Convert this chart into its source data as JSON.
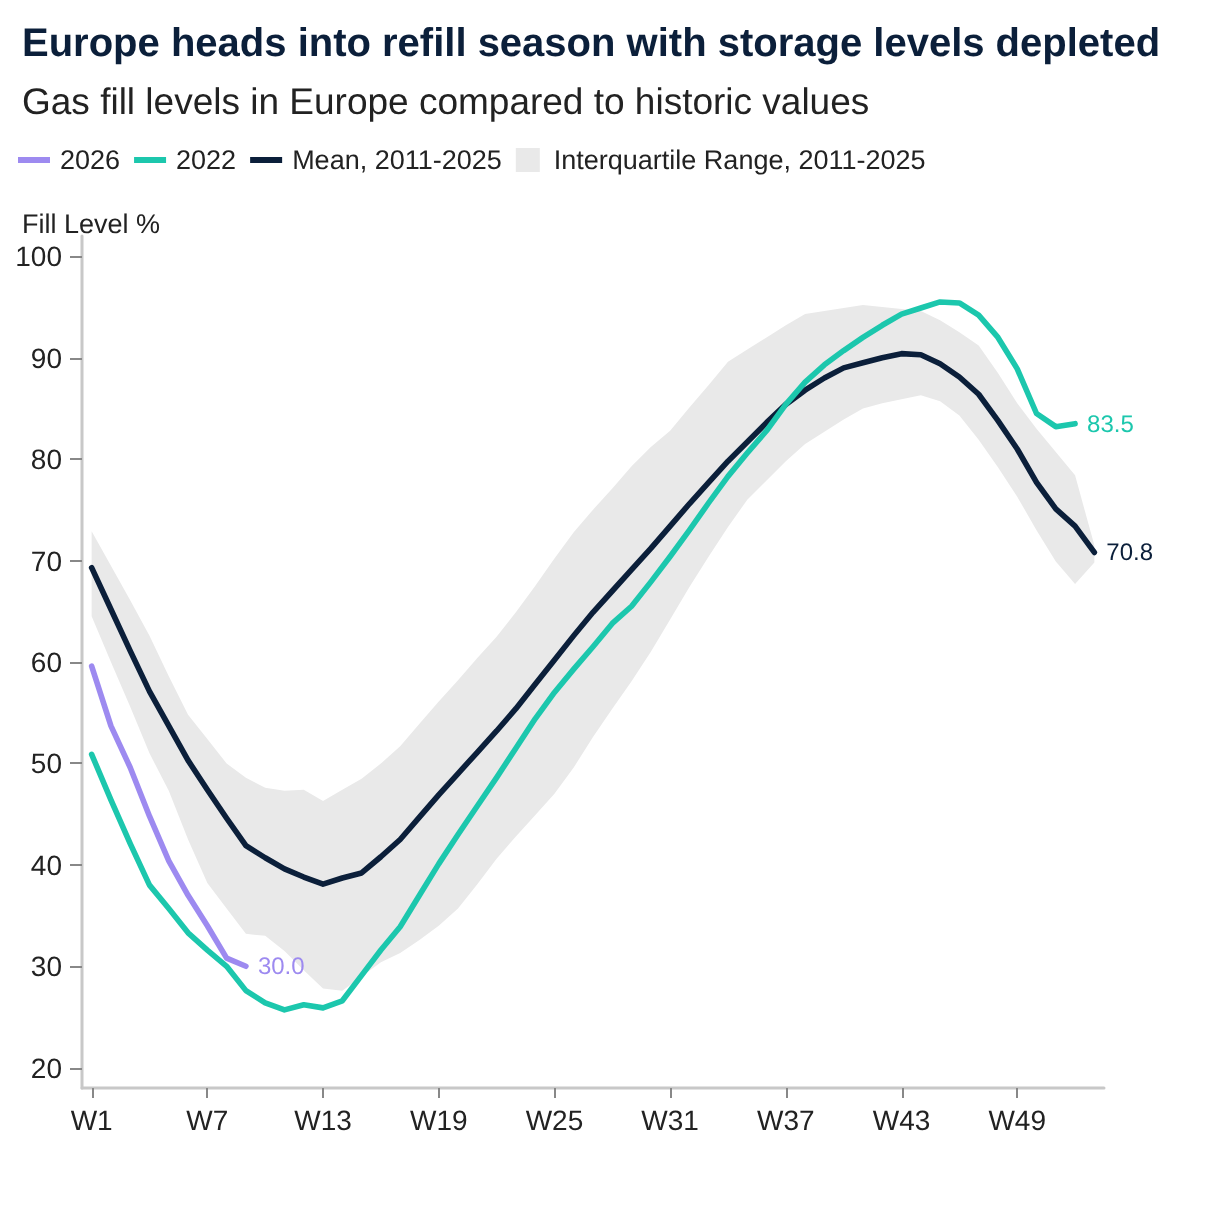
{
  "chart_data": {
    "type": "line",
    "title": "Europe heads into refill season with storage levels depleted",
    "subtitle": "Gas fill levels in Europe compared to historic values",
    "ylabel": "Fill Level %",
    "categories": [
      "W1",
      null,
      null,
      null,
      null,
      null,
      "W7",
      null,
      null,
      null,
      null,
      null,
      "W13",
      null,
      null,
      null,
      null,
      null,
      "W19",
      null,
      null,
      null,
      null,
      null,
      "W25",
      null,
      null,
      null,
      null,
      null,
      "W31",
      null,
      null,
      null,
      null,
      null,
      "W37",
      null,
      null,
      null,
      null,
      null,
      "W43",
      null,
      null,
      null,
      null,
      null,
      "W49",
      null,
      null,
      null,
      null
    ],
    "ylim": [
      18,
      102
    ],
    "yticks": [
      20,
      30,
      40,
      50,
      60,
      70,
      80,
      90,
      100
    ],
    "grid": false,
    "legend": "top left",
    "marker": "none",
    "line_style": "solid",
    "series": [
      {
        "name": "2026",
        "color": "#9d8af0",
        "values": [
          59.6,
          53.7,
          49.6,
          44.8,
          40.4,
          37.0,
          34.0,
          30.8,
          30.0,
          null,
          null,
          null,
          null,
          null,
          null,
          null,
          null,
          null,
          null,
          null,
          null,
          null,
          null,
          null,
          null,
          null,
          null,
          null,
          null,
          null,
          null,
          null,
          null,
          null,
          null,
          null,
          null,
          null,
          null,
          null,
          null,
          null,
          null,
          null,
          null,
          null,
          null,
          null,
          null,
          null,
          null,
          null,
          null
        ],
        "value_labels": [
          null,
          null,
          null,
          null,
          null,
          null,
          null,
          null,
          "30.0",
          null,
          null,
          null,
          null,
          null,
          null,
          null,
          null,
          null,
          null,
          null,
          null,
          null,
          null,
          null,
          null,
          null,
          null,
          null,
          null,
          null,
          null,
          null,
          null,
          null,
          null,
          null,
          null,
          null,
          null,
          null,
          null,
          null,
          null,
          null,
          null,
          null,
          null,
          null,
          null,
          null,
          null,
          null,
          null
        ]
      },
      {
        "name": "2022",
        "color": "#1cc7ad",
        "values": [
          50.9,
          46.4,
          42.1,
          38.0,
          35.7,
          33.3,
          31.6,
          30.0,
          27.6,
          26.4,
          25.7,
          26.2,
          25.9,
          26.6,
          29.1,
          31.6,
          33.9,
          37.0,
          40.1,
          43.0,
          45.8,
          48.6,
          51.5,
          54.4,
          57.0,
          59.3,
          61.5,
          63.8,
          65.5,
          67.9,
          70.4,
          73.0,
          75.7,
          78.3,
          80.6,
          82.8,
          85.4,
          87.6,
          89.3,
          90.7,
          92.0,
          93.2,
          94.3,
          94.9,
          95.5,
          95.4,
          94.2,
          92.0,
          88.9,
          84.5,
          83.2,
          83.5,
          null
        ],
        "value_labels": [
          null,
          null,
          null,
          null,
          null,
          null,
          null,
          null,
          null,
          null,
          null,
          null,
          null,
          null,
          null,
          null,
          null,
          null,
          null,
          null,
          null,
          null,
          null,
          null,
          null,
          null,
          null,
          null,
          null,
          null,
          null,
          null,
          null,
          null,
          null,
          null,
          null,
          null,
          null,
          null,
          null,
          null,
          null,
          null,
          null,
          null,
          null,
          null,
          null,
          null,
          null,
          "83.5",
          null
        ]
      },
      {
        "name": "Mean, 2011-2025",
        "color": "#0b1f3a",
        "values": [
          69.3,
          65.2,
          61.1,
          57.1,
          53.7,
          50.3,
          47.4,
          44.6,
          41.9,
          40.7,
          39.6,
          38.8,
          38.1,
          38.7,
          39.2,
          40.8,
          42.5,
          44.7,
          46.9,
          49.0,
          51.1,
          53.2,
          55.4,
          57.8,
          60.2,
          62.6,
          64.9,
          67.0,
          69.1,
          71.2,
          73.4,
          75.6,
          77.7,
          79.8,
          81.7,
          83.6,
          85.4,
          86.8,
          88.0,
          89.0,
          89.5,
          90.0,
          90.4,
          90.3,
          89.4,
          88.1,
          86.4,
          83.8,
          81.0,
          77.7,
          75.1,
          73.4,
          70.8
        ],
        "value_labels": [
          null,
          null,
          null,
          null,
          null,
          null,
          null,
          null,
          null,
          null,
          null,
          null,
          null,
          null,
          null,
          null,
          null,
          null,
          null,
          null,
          null,
          null,
          null,
          null,
          null,
          null,
          null,
          null,
          null,
          null,
          null,
          null,
          null,
          null,
          null,
          null,
          null,
          null,
          null,
          null,
          null,
          null,
          null,
          null,
          null,
          null,
          null,
          null,
          null,
          null,
          null,
          null,
          "70.8"
        ]
      },
      {
        "name": "Interquartile Range, 2011-2025",
        "type": "area",
        "color": "#e9e9e9",
        "values": [
          null,
          null,
          null,
          null,
          null,
          null,
          null,
          null,
          null,
          null,
          null,
          null,
          null,
          null,
          null,
          null,
          null,
          null,
          null,
          null,
          null,
          null,
          null,
          null,
          null,
          null,
          null,
          null,
          null,
          null,
          null,
          null,
          null,
          null,
          null,
          null,
          null,
          null,
          null,
          null,
          null,
          null,
          null,
          null,
          null,
          null,
          null,
          null,
          null,
          null,
          null,
          null,
          null
        ],
        "lower": [
          64.5,
          60.0,
          55.6,
          51.0,
          47.3,
          42.5,
          38.2,
          35.7,
          33.2,
          33.0,
          31.5,
          29.6,
          27.8,
          27.6,
          29.0,
          30.4,
          31.3,
          32.6,
          34.0,
          35.7,
          38.1,
          40.6,
          42.8,
          44.9,
          47.0,
          49.6,
          52.6,
          55.4,
          58.1,
          61.0,
          64.2,
          67.4,
          70.4,
          73.3,
          76.0,
          77.9,
          79.8,
          81.5,
          82.7,
          83.9,
          85.0,
          85.5,
          85.9,
          86.3,
          85.7,
          84.3,
          81.9,
          79.2,
          76.3,
          73.0,
          69.9,
          67.7,
          69.8
        ],
        "upper": [
          72.9,
          69.5,
          66.1,
          62.6,
          58.6,
          54.8,
          52.4,
          50.0,
          48.6,
          47.6,
          47.3,
          47.4,
          46.3,
          47.4,
          48.5,
          50.0,
          51.7,
          53.9,
          56.1,
          58.2,
          60.4,
          62.5,
          64.9,
          67.5,
          70.2,
          72.8,
          75.0,
          77.1,
          79.3,
          81.2,
          82.8,
          85.1,
          87.3,
          89.6,
          90.8,
          92.0,
          93.2,
          94.3,
          94.6,
          94.9,
          95.2,
          95.0,
          94.8,
          94.6,
          93.7,
          92.5,
          91.2,
          88.5,
          85.5,
          83.0,
          80.7,
          78.4,
          71.5
        ]
      }
    ]
  }
}
